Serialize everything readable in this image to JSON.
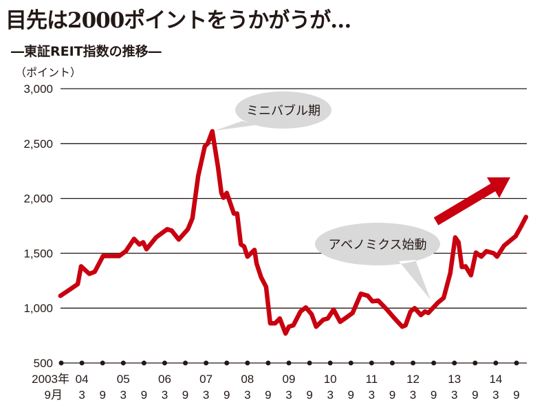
{
  "title": "目先は2000ポイントをうかがうが…",
  "subtitle": "―東証REIT指数の推移―",
  "chart_data": {
    "type": "line",
    "title": "目先は2000ポイントをうかがうが…",
    "subtitle": "―東証REIT指数の推移―",
    "ylabel": "（ポイント）",
    "xlabel": "",
    "ylim": [
      500,
      3000
    ],
    "yticks": [
      500,
      1000,
      1500,
      2000,
      2500,
      3000
    ],
    "ytick_labels": [
      "500",
      "1,000",
      "1,500",
      "2,000",
      "2,500",
      "3,000"
    ],
    "xlim": [
      2003.75,
      2014.75
    ],
    "xticks": [
      {
        "t": 2003.75,
        "year": "2003年",
        "month": "9月"
      },
      {
        "t": 2004.25,
        "year": "04",
        "month": "3"
      },
      {
        "t": 2004.75,
        "year": "",
        "month": "9"
      },
      {
        "t": 2005.25,
        "year": "05",
        "month": "3"
      },
      {
        "t": 2005.75,
        "year": "",
        "month": "9"
      },
      {
        "t": 2006.25,
        "year": "06",
        "month": "3"
      },
      {
        "t": 2006.75,
        "year": "",
        "month": "9"
      },
      {
        "t": 2007.25,
        "year": "07",
        "month": "3"
      },
      {
        "t": 2007.75,
        "year": "",
        "month": "9"
      },
      {
        "t": 2008.25,
        "year": "08",
        "month": "3"
      },
      {
        "t": 2008.75,
        "year": "",
        "month": "9"
      },
      {
        "t": 2009.25,
        "year": "09",
        "month": "3"
      },
      {
        "t": 2009.75,
        "year": "",
        "month": "9"
      },
      {
        "t": 2010.25,
        "year": "10",
        "month": "3"
      },
      {
        "t": 2010.75,
        "year": "",
        "month": "9"
      },
      {
        "t": 2011.25,
        "year": "11",
        "month": "3"
      },
      {
        "t": 2011.75,
        "year": "",
        "month": "9"
      },
      {
        "t": 2012.25,
        "year": "12",
        "month": "3"
      },
      {
        "t": 2012.75,
        "year": "",
        "month": "9"
      },
      {
        "t": 2013.25,
        "year": "13",
        "month": "3"
      },
      {
        "t": 2013.75,
        "year": "",
        "month": "9"
      },
      {
        "t": 2014.25,
        "year": "14",
        "month": "3"
      },
      {
        "t": 2014.75,
        "year": "",
        "month": "9"
      }
    ],
    "grid": true,
    "series": [
      {
        "name": "東証REIT指数",
        "color": "#c8000f",
        "x": [
          2003.73,
          2003.93,
          2004.15,
          2004.23,
          2004.43,
          2004.56,
          2004.76,
          2005.15,
          2005.31,
          2005.51,
          2005.64,
          2005.73,
          2005.81,
          2006.04,
          2006.31,
          2006.42,
          2006.59,
          2006.81,
          2006.92,
          2007.06,
          2007.22,
          2007.29,
          2007.4,
          2007.54,
          2007.62,
          2007.67,
          2007.75,
          2007.92,
          2008.0,
          2008.09,
          2008.17,
          2008.25,
          2008.42,
          2008.47,
          2008.58,
          2008.7,
          2008.8,
          2008.92,
          2009.03,
          2009.17,
          2009.25,
          2009.36,
          2009.53,
          2009.66,
          2009.8,
          2009.91,
          2010.08,
          2010.19,
          2010.33,
          2010.49,
          2010.63,
          2010.79,
          2010.99,
          2011.16,
          2011.27,
          2011.41,
          2011.62,
          2011.79,
          2011.99,
          2012.07,
          2012.19,
          2012.29,
          2012.44,
          2012.54,
          2012.62,
          2012.85,
          2012.99,
          2013.15,
          2013.27,
          2013.35,
          2013.43,
          2013.52,
          2013.65,
          2013.77,
          2013.9,
          2014.02,
          2014.2,
          2014.28,
          2014.45,
          2014.73,
          2014.85,
          2014.98
        ],
        "values": [
          1112,
          1162,
          1219,
          1381,
          1312,
          1331,
          1475,
          1475,
          1519,
          1631,
          1581,
          1600,
          1537,
          1644,
          1719,
          1706,
          1625,
          1719,
          1819,
          2206,
          2475,
          2500,
          2612,
          2281,
          2050,
          2006,
          2050,
          1862,
          1862,
          1581,
          1562,
          1469,
          1531,
          1406,
          1281,
          1194,
          862,
          862,
          906,
          769,
          831,
          844,
          969,
          1006,
          944,
          831,
          894,
          906,
          987,
          875,
          912,
          956,
          1131,
          1112,
          1062,
          1069,
          987,
          912,
          831,
          844,
          969,
          1000,
          937,
          969,
          956,
          1050,
          1094,
          1319,
          1644,
          1600,
          1375,
          1381,
          1300,
          1506,
          1469,
          1519,
          1500,
          1469,
          1569,
          1656,
          1737,
          1831
        ]
      }
    ],
    "annotations": [
      {
        "text": "ミニバブル期",
        "t": 2007.4,
        "value": 2612
      },
      {
        "text": "アベノミクス始動",
        "t": 2012.75,
        "value": 1000
      }
    ]
  }
}
